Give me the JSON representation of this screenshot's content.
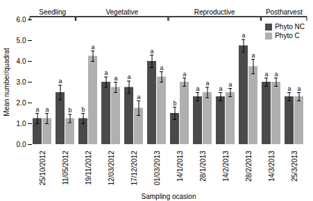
{
  "chart_data": {
    "type": "bar",
    "xlabel": "Sampling ocasion",
    "ylabel": "Mean number/quadrat",
    "categories": [
      "25/10/2012",
      "11/05/2012",
      "19/11/2012",
      "12/03/2012",
      "17/12/2012",
      "01/03/2013",
      "14/1/2013",
      "28/1/2013",
      "14/2/2013",
      "28/2/2013",
      "14/3/2013",
      "25/3/2013"
    ],
    "series": [
      {
        "name": "Phyto NC",
        "color": "#4a4a4a",
        "values": [
          1.25,
          2.5,
          1.25,
          3.0,
          2.75,
          4.0,
          1.5,
          2.3,
          2.3,
          4.75,
          3.0,
          2.3
        ],
        "errors": [
          0.25,
          0.35,
          0.25,
          0.25,
          0.3,
          0.3,
          0.3,
          0.2,
          0.2,
          0.3,
          0.2,
          0.2
        ],
        "letters": [
          "a",
          "a",
          "b",
          "a",
          "a",
          "a",
          "b",
          "a",
          "a",
          "a",
          "a",
          "a"
        ]
      },
      {
        "name": "Phyto C",
        "color": "#b0b0b0",
        "values": [
          1.25,
          1.25,
          4.25,
          2.75,
          1.75,
          3.25,
          3.0,
          2.5,
          2.5,
          3.75,
          3.0,
          2.3
        ],
        "errors": [
          0.25,
          0.2,
          0.25,
          0.25,
          0.35,
          0.25,
          0.2,
          0.25,
          0.2,
          0.35,
          0.2,
          0.2
        ],
        "letters": [
          "a",
          "b",
          "a",
          "a",
          "a",
          "a",
          "a",
          "a",
          "a",
          "a",
          "a",
          "a"
        ]
      }
    ],
    "annotations": [
      {
        "text": "Seedling",
        "from": "25/10/2012",
        "to": "11/05/2012"
      },
      {
        "text": "Vegetative",
        "from": "19/11/2012",
        "to": "01/03/2013"
      },
      {
        "text": "Reproductive",
        "from": "14/1/2013",
        "to": "28/2/2013"
      },
      {
        "text": "Postharvest",
        "from": "14/3/2013",
        "to": "25/3/2013"
      }
    ],
    "ylim": [
      0,
      6
    ],
    "yticks": [
      0,
      1,
      2,
      3,
      4,
      5,
      6
    ],
    "legend": "upper right"
  }
}
